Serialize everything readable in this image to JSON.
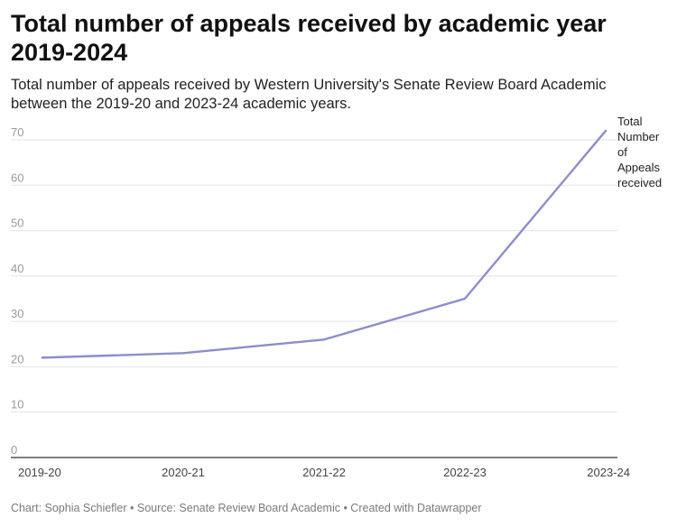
{
  "chart_data": {
    "type": "line",
    "title": "Total number of appeals received by academic year 2019-2024",
    "subtitle": "Total number of appeals received by Western University's Senate Review Board Academic between the 2019-20 and 2023-24 academic years.",
    "categories": [
      "2019-20",
      "2020-21",
      "2021-22",
      "2022-23",
      "2023-24"
    ],
    "series": [
      {
        "name": "Total Number of Appeals received",
        "label_lines": [
          "Total",
          "Number",
          "of",
          "Appeals",
          "received"
        ],
        "values": [
          22,
          23,
          26,
          35,
          72
        ],
        "color": "#8d8dcc"
      }
    ],
    "yticks": [
      0,
      10,
      20,
      30,
      40,
      50,
      60,
      70
    ],
    "ylim": [
      0,
      70
    ],
    "grid": true,
    "legend": "direct-label-right"
  },
  "footer": "Chart: Sophia Schiefler • Source: Senate Review Board Academic • Created with Datawrapper"
}
